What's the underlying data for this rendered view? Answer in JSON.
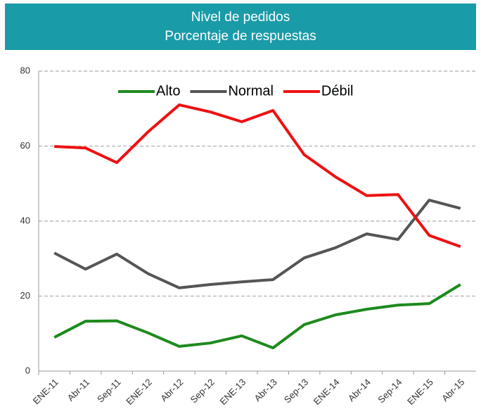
{
  "chart_data": {
    "type": "line",
    "title": [
      "Nivel de pedidos",
      "Porcentaje de respuestas"
    ],
    "categories": [
      "ENE-11",
      "Abr-11",
      "Sep-11",
      "ENE-12",
      "Abr-12",
      "Sep-12",
      "ENE-13",
      "Abr-13",
      "Sep-13",
      "ENE-14",
      "Abr-14",
      "Sep-14",
      "ENE-15",
      "Abr-15"
    ],
    "series": [
      {
        "name": "Alto",
        "color": "#1e8a1e",
        "values": [
          9.0,
          13.3,
          13.4,
          10.2,
          6.6,
          7.5,
          9.4,
          6.2,
          12.4,
          15.0,
          16.5,
          17.6,
          18.0,
          23.1
        ]
      },
      {
        "name": "Normal",
        "color": "#555555",
        "values": [
          31.5,
          27.2,
          31.2,
          26.0,
          22.2,
          23.1,
          23.8,
          24.4,
          30.2,
          32.9,
          36.6,
          35.1,
          45.6,
          43.4
        ]
      },
      {
        "name": "Débil",
        "color": "#ee1111",
        "values": [
          59.9,
          59.5,
          55.6,
          63.8,
          71.0,
          69.1,
          66.5,
          69.5,
          57.7,
          51.8,
          46.8,
          47.1,
          36.2,
          33.2
        ]
      }
    ],
    "ylim": [
      0,
      80
    ],
    "yticks": [
      0,
      20,
      40,
      60,
      80
    ],
    "grid": true,
    "legend": "top"
  }
}
